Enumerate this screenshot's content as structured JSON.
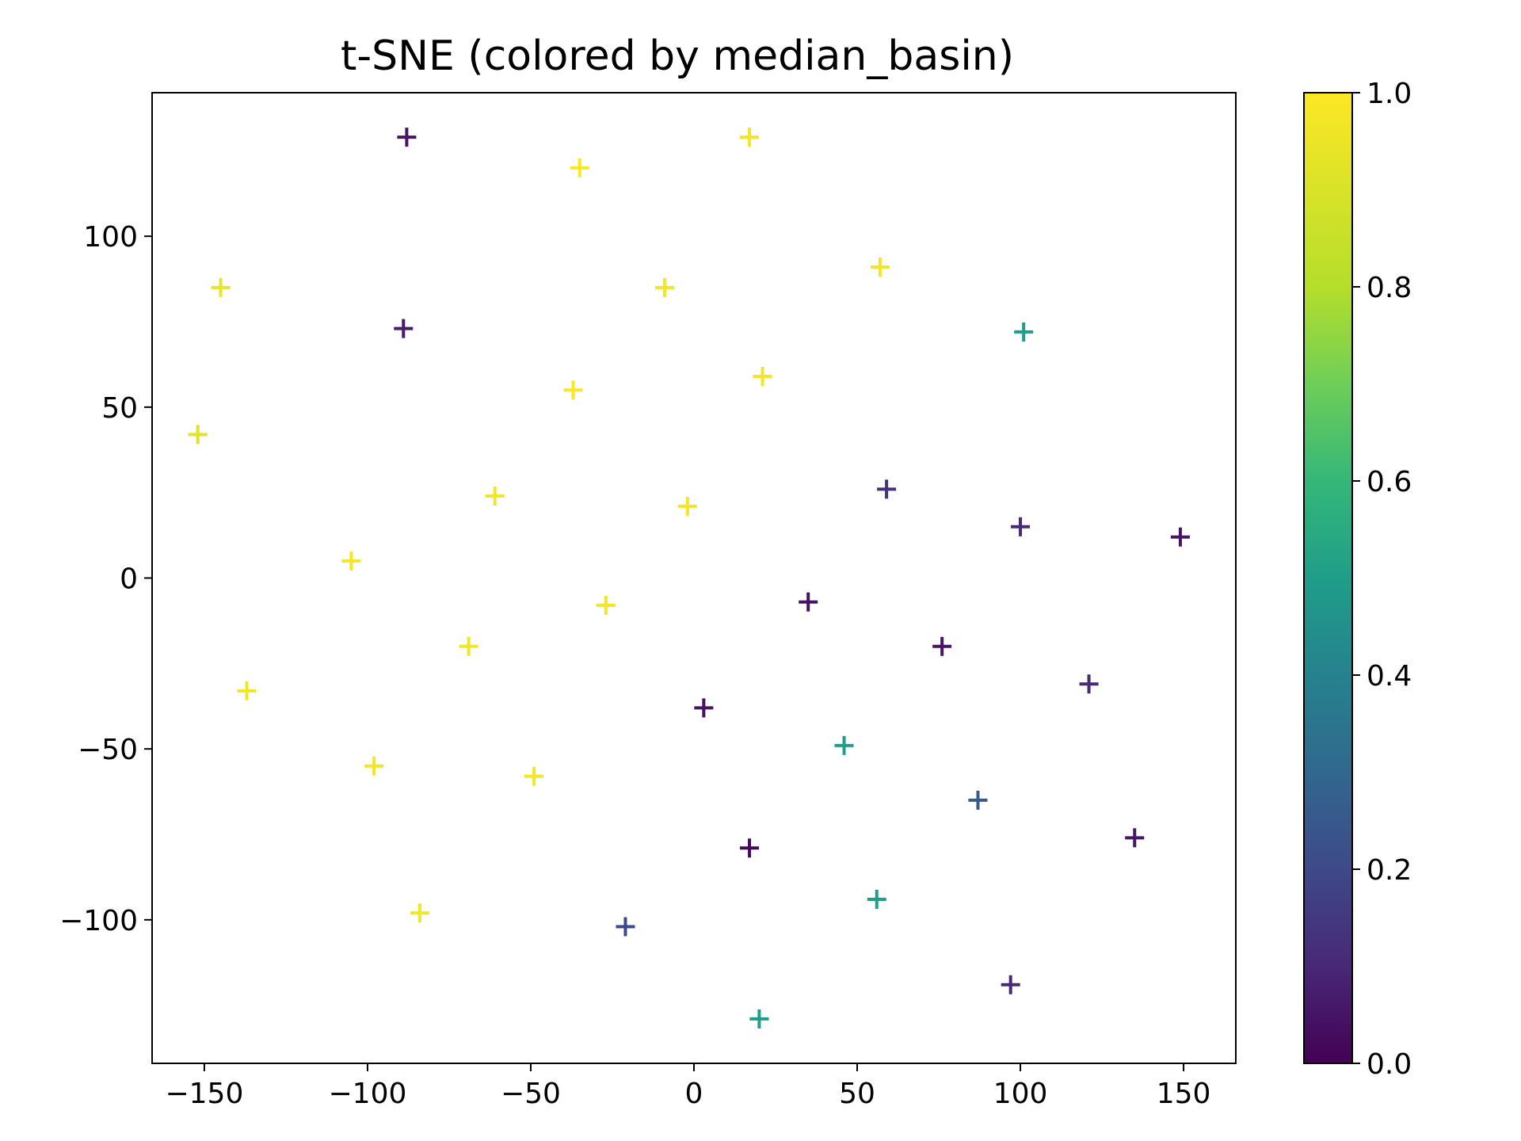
{
  "chart_data": {
    "type": "scatter",
    "title": "t-SNE (colored by median_basin)",
    "xlabel": "",
    "ylabel": "",
    "xlim": [
      -166,
      166
    ],
    "ylim": [
      -142,
      142
    ],
    "xticks": [
      -150,
      -100,
      -50,
      0,
      50,
      100,
      150
    ],
    "yticks": [
      -100,
      -50,
      0,
      50,
      100
    ],
    "marker": "plus",
    "colormap": "viridis",
    "colorbar": {
      "range": [
        0.0,
        1.0
      ],
      "ticks": [
        "0.0",
        "0.2",
        "0.4",
        "0.6",
        "0.8",
        "1.0"
      ]
    },
    "grid": false,
    "points": [
      {
        "x": -88,
        "y": 129,
        "c": 0.05
      },
      {
        "x": -35,
        "y": 120,
        "c": 1.0
      },
      {
        "x": 17,
        "y": 129,
        "c": 0.97
      },
      {
        "x": -145,
        "y": 85,
        "c": 0.95
      },
      {
        "x": -89,
        "y": 73,
        "c": 0.07
      },
      {
        "x": -9,
        "y": 85,
        "c": 0.97
      },
      {
        "x": 57,
        "y": 91,
        "c": 0.97
      },
      {
        "x": 101,
        "y": 72,
        "c": 0.5
      },
      {
        "x": -37,
        "y": 55,
        "c": 1.0
      },
      {
        "x": 21,
        "y": 59,
        "c": 0.97
      },
      {
        "x": -152,
        "y": 42,
        "c": 0.92
      },
      {
        "x": -61,
        "y": 24,
        "c": 0.97
      },
      {
        "x": -2,
        "y": 21,
        "c": 0.97
      },
      {
        "x": 59,
        "y": 26,
        "c": 0.12
      },
      {
        "x": 100,
        "y": 15,
        "c": 0.1
      },
      {
        "x": 149,
        "y": 12,
        "c": 0.05
      },
      {
        "x": -105,
        "y": 5,
        "c": 0.97
      },
      {
        "x": -27,
        "y": -8,
        "c": 0.97
      },
      {
        "x": 35,
        "y": -7,
        "c": 0.04
      },
      {
        "x": -69,
        "y": -20,
        "c": 0.97
      },
      {
        "x": 76,
        "y": -20,
        "c": 0.05
      },
      {
        "x": 121,
        "y": -31,
        "c": 0.1
      },
      {
        "x": -137,
        "y": -33,
        "c": 0.97
      },
      {
        "x": 3,
        "y": -38,
        "c": 0.04
      },
      {
        "x": 46,
        "y": -49,
        "c": 0.5
      },
      {
        "x": -98,
        "y": -55,
        "c": 0.97
      },
      {
        "x": -49,
        "y": -58,
        "c": 0.97
      },
      {
        "x": 87,
        "y": -65,
        "c": 0.25
      },
      {
        "x": 135,
        "y": -76,
        "c": 0.05
      },
      {
        "x": 17,
        "y": -79,
        "c": 0.02
      },
      {
        "x": 56,
        "y": -94,
        "c": 0.5
      },
      {
        "x": -84,
        "y": -98,
        "c": 0.97
      },
      {
        "x": -21,
        "y": -102,
        "c": 0.2
      },
      {
        "x": 97,
        "y": -119,
        "c": 0.1
      },
      {
        "x": 20,
        "y": -129,
        "c": 0.5
      }
    ]
  }
}
